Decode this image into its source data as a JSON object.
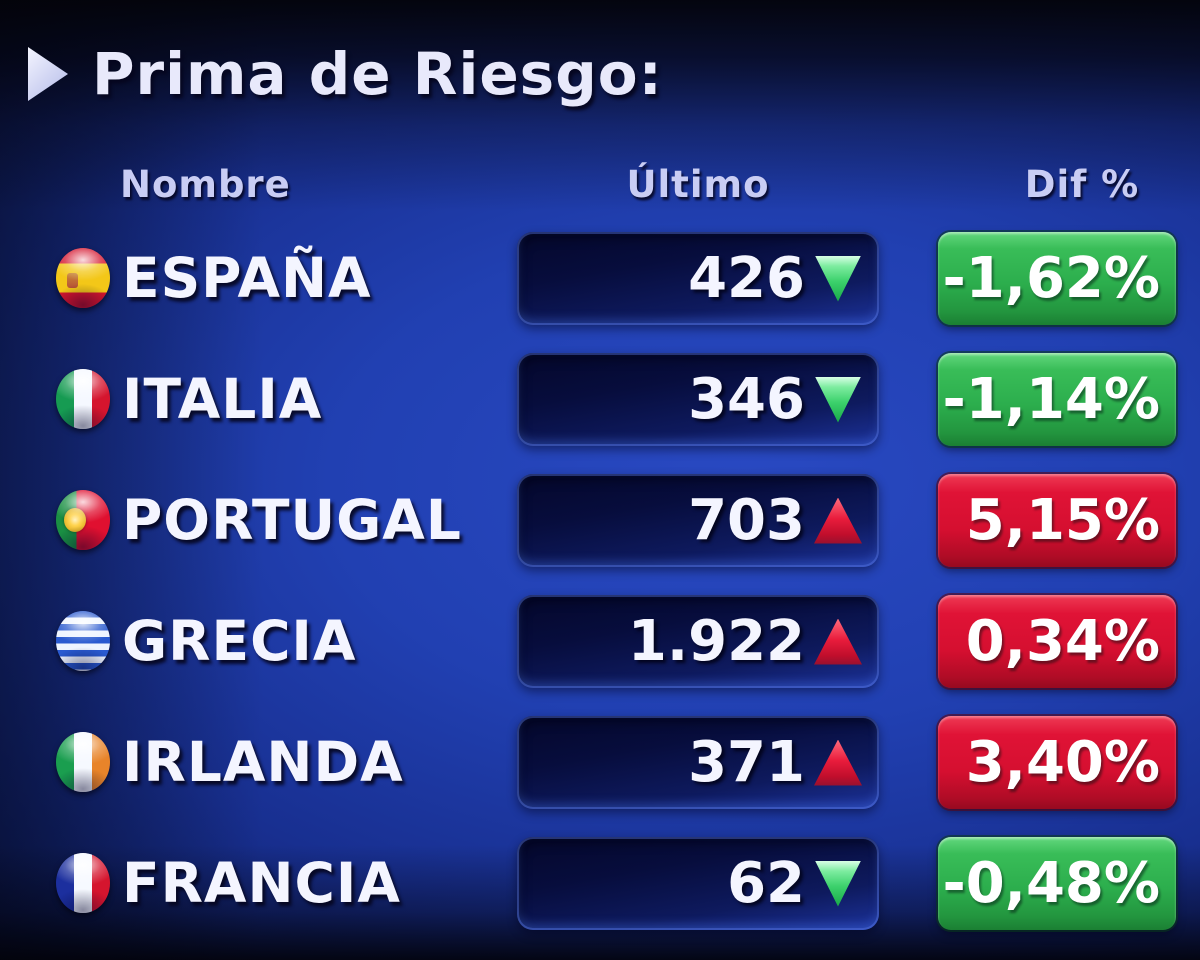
{
  "title": {
    "text": "Prima de Riesgo:"
  },
  "table": {
    "headers": {
      "name": "Nombre",
      "last": "Último",
      "diff": "Dif %"
    },
    "rows": [
      {
        "country": "ESPAÑA",
        "flag": "spain",
        "last": "426",
        "direction": "down",
        "diff": "-1,62%",
        "diff_color": "green"
      },
      {
        "country": "ITALIA",
        "flag": "italy",
        "last": "346",
        "direction": "down",
        "diff": "-1,14%",
        "diff_color": "green"
      },
      {
        "country": "PORTUGAL",
        "flag": "portugal",
        "last": "703",
        "direction": "up",
        "diff": "5,15%",
        "diff_color": "red"
      },
      {
        "country": "GRECIA",
        "flag": "greece",
        "last": "1.922",
        "direction": "up",
        "diff": "0,34%",
        "diff_color": "red"
      },
      {
        "country": "IRLANDA",
        "flag": "ireland",
        "last": "371",
        "direction": "up",
        "diff": "3,40%",
        "diff_color": "red"
      },
      {
        "country": "FRANCIA",
        "flag": "france",
        "last": "62",
        "direction": "down",
        "diff": "-0,48%",
        "diff_color": "green"
      }
    ]
  },
  "icons": {
    "title_marker": "right-triangle",
    "trend_up": "red-up-triangle",
    "trend_down": "green-down-triangle"
  },
  "colors": {
    "background_blue": "#2140b2",
    "positive_badge_red": "#d50f30",
    "negative_badge_green": "#2cae4d",
    "up_arrow_red": "#e91c3c",
    "down_arrow_green": "#3cd16c",
    "text_white": "#f4f5ff",
    "header_lavender": "#c9cdf4"
  }
}
